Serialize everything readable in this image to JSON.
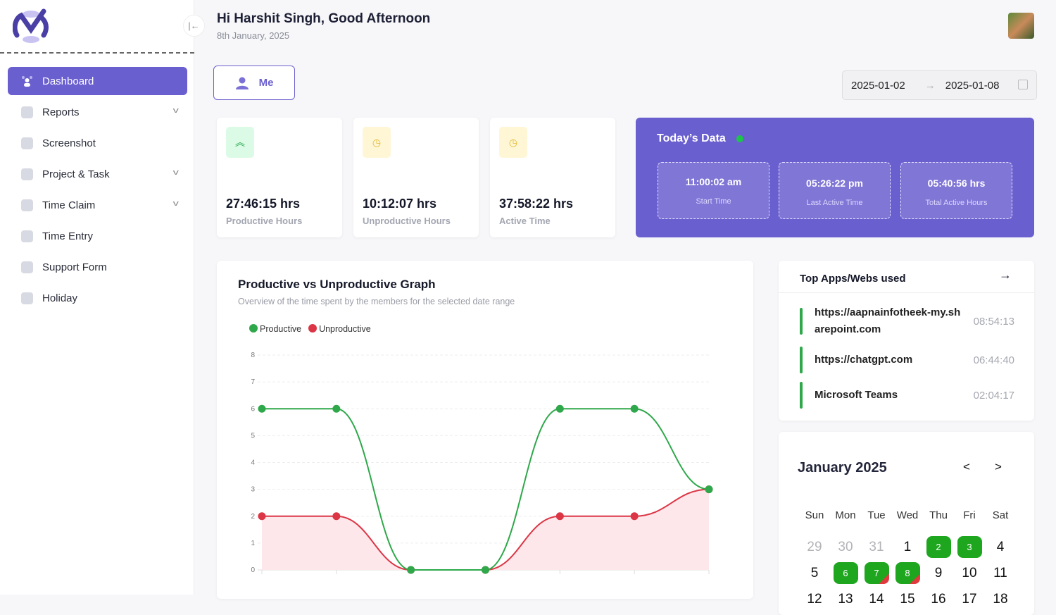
{
  "header": {
    "greeting": "Hi Harshit Singh, Good Afternoon",
    "date": "8th January, 2025"
  },
  "sidebar": {
    "items": [
      {
        "label": "Dashboard",
        "icon": "dashboard-icon",
        "active": true,
        "expandable": false
      },
      {
        "label": "Reports",
        "icon": "reports-icon",
        "expandable": true
      },
      {
        "label": "Screenshot",
        "icon": "image-icon",
        "expandable": false
      },
      {
        "label": "Project & Task",
        "icon": "pie-icon",
        "expandable": true
      },
      {
        "label": "Time Claim",
        "icon": "calendar-clock-icon",
        "expandable": true
      },
      {
        "label": "Time Entry",
        "icon": "clock-icon",
        "expandable": false
      },
      {
        "label": "Support Form",
        "icon": "support-24-icon",
        "expandable": false
      },
      {
        "label": "Holiday",
        "icon": "holiday-icon",
        "expandable": false
      }
    ]
  },
  "filter": {
    "me_label": "Me",
    "start_date": "2025-01-02",
    "end_date": "2025-01-08"
  },
  "stats": [
    {
      "value": "27:46:15 hrs",
      "label": "Productive Hours",
      "icon": "double-chevron-up-icon"
    },
    {
      "value": "10:12:07 hrs",
      "label": "Unproductive Hours",
      "icon": "clock-icon"
    },
    {
      "value": "37:58:22 hrs",
      "label": "Active Time",
      "icon": "clock-icon"
    }
  ],
  "today": {
    "title": "Today’s Data",
    "items": [
      {
        "value": "11:00:02 am",
        "label": "Start Time"
      },
      {
        "value": "05:26:22 pm",
        "label": "Last Active Time"
      },
      {
        "value": "05:40:56 hrs",
        "label": "Total Active Hours"
      }
    ]
  },
  "graph": {
    "title": "Productive vs Unproductive Graph",
    "subtitle": "Overview of the time spent by the members for the selected date range"
  },
  "chart_data": {
    "type": "line",
    "ylim": [
      0,
      8
    ],
    "yticks": [
      "0",
      "1",
      "2",
      "3",
      "4",
      "5",
      "6",
      "7",
      "8"
    ],
    "grid": true,
    "legend": "top-left",
    "series": [
      {
        "name": "Productive",
        "color": "#2ea84a",
        "values": [
          6,
          6,
          0,
          0,
          6,
          6,
          3
        ]
      },
      {
        "name": "Unproductive",
        "color": "#dc3545",
        "values": [
          2,
          2,
          0,
          0,
          2,
          2,
          3
        ],
        "fill": "#fde7ea"
      }
    ]
  },
  "apps": {
    "title": "Top Apps/Webs used",
    "items": [
      {
        "name": "https://aapnainfotheek-my.sharepoint.com",
        "time": "08:54:13"
      },
      {
        "name": "https://chatgpt.com",
        "time": "06:44:40"
      },
      {
        "name": "Microsoft Teams",
        "time": "02:04:17"
      }
    ]
  },
  "calendar": {
    "title": "January 2025",
    "prev": "<",
    "next": ">",
    "weekdays": [
      "Sun",
      "Mon",
      "Tue",
      "Wed",
      "Thu",
      "Fri",
      "Sat"
    ],
    "days": [
      {
        "d": "29",
        "muted": true
      },
      {
        "d": "30",
        "muted": true
      },
      {
        "d": "31",
        "muted": true
      },
      {
        "d": "1"
      },
      {
        "d": "2",
        "status": "productive"
      },
      {
        "d": "3",
        "status": "productive"
      },
      {
        "d": "4"
      },
      {
        "d": "5"
      },
      {
        "d": "6",
        "status": "productive"
      },
      {
        "d": "7",
        "status": "mixed"
      },
      {
        "d": "8",
        "status": "mixed"
      },
      {
        "d": "9"
      },
      {
        "d": "10"
      },
      {
        "d": "11"
      },
      {
        "d": "12"
      },
      {
        "d": "13"
      },
      {
        "d": "14"
      },
      {
        "d": "15"
      },
      {
        "d": "16"
      },
      {
        "d": "17"
      },
      {
        "d": "18"
      }
    ]
  },
  "colors": {
    "accent": "#6a5fcf",
    "productive": "#2ea84a",
    "unproductive": "#dc3545"
  }
}
